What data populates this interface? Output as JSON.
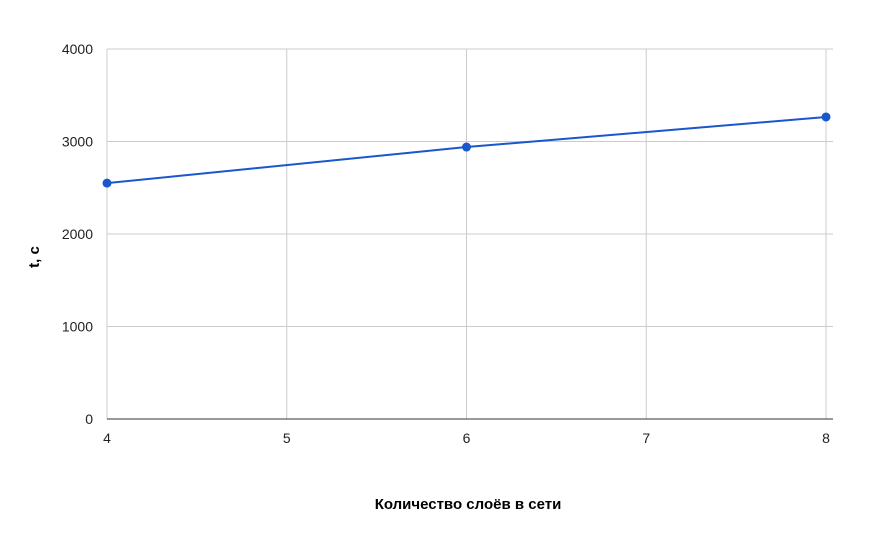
{
  "chart_data": {
    "type": "line",
    "title": "",
    "xlabel": "Количество слоёв в сети",
    "ylabel": "t, c",
    "x": [
      4,
      6,
      8
    ],
    "series": [
      {
        "values": [
          2550,
          2940,
          3265
        ],
        "color": "#1a56cc"
      }
    ],
    "xlim": [
      4,
      8
    ],
    "ylim": [
      0,
      4000
    ],
    "xticks": [
      "4",
      "5",
      "6",
      "7",
      "8"
    ],
    "yticks": [
      "0",
      "1000",
      "2000",
      "3000",
      "4000"
    ],
    "grid": true,
    "legend": "none"
  }
}
